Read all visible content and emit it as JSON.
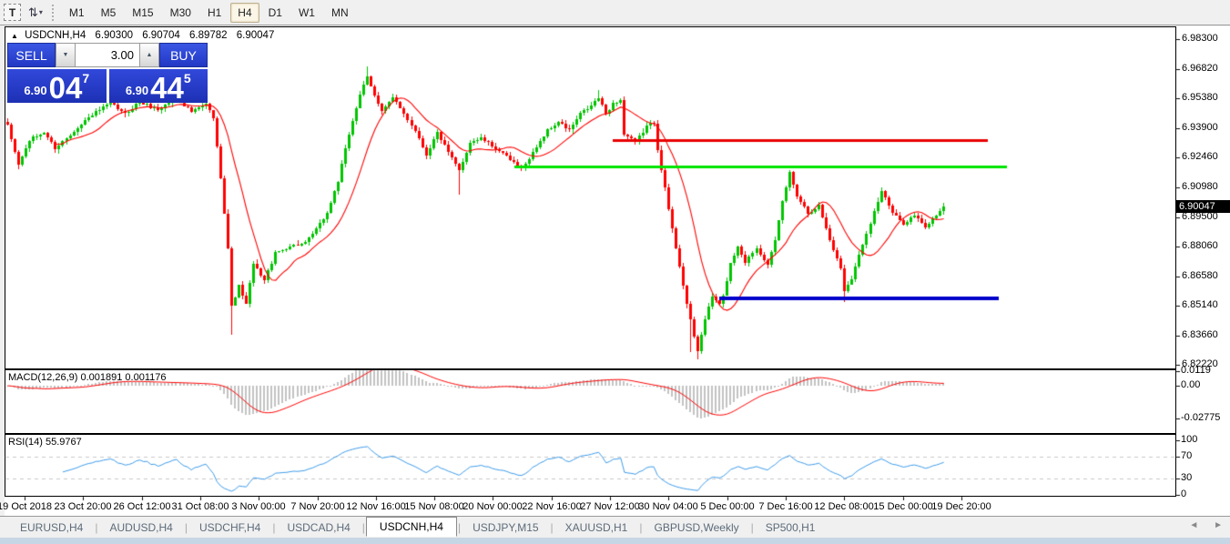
{
  "toolbar": {
    "text_tool": "T",
    "timeframes": [
      "M1",
      "M5",
      "M15",
      "M30",
      "H1",
      "H4",
      "D1",
      "W1",
      "MN"
    ],
    "active_timeframe": "H4"
  },
  "glyphs": {
    "collapse": "▲",
    "arrange": "⇅",
    "caret": "▾",
    "spin_down": "▼",
    "spin_up": "▲",
    "nav_left": "◄",
    "nav_right": "►"
  },
  "chart": {
    "title": {
      "symbol": "USDCNH,H4",
      "open": "6.90300",
      "high": "6.90704",
      "low": "6.89782",
      "close": "6.90047"
    },
    "trade_panel": {
      "sell_label": "SELL",
      "buy_label": "BUY",
      "volume": "3.00",
      "sell_price": {
        "prefix": "6.90",
        "big": "04",
        "sup": "7"
      },
      "buy_price": {
        "prefix": "6.90",
        "big": "44",
        "sup": "5"
      }
    },
    "price_axis": {
      "ticks": [
        "6.98300",
        "6.96820",
        "6.95380",
        "6.93900",
        "6.92460",
        "6.90980",
        "6.89500",
        "6.88060",
        "6.86580",
        "6.85140",
        "6.83660",
        "6.82220"
      ],
      "current": "6.90047"
    },
    "time_axis": [
      "19 Oct 2018",
      "23 Oct 20:00",
      "26 Oct 12:00",
      "31 Oct 08:00",
      "3 Nov 00:00",
      "7 Nov 20:00",
      "12 Nov 16:00",
      "15 Nov 08:00",
      "20 Nov 00:00",
      "22 Nov 16:00",
      "27 Nov 12:00",
      "30 Nov 04:00",
      "5 Dec 00:00",
      "7 Dec 16:00",
      "12 Dec 08:00",
      "15 Dec 00:00",
      "19 Dec 20:00"
    ],
    "macd": {
      "label": "MACD(12,26,9) 0.001891 0.001176",
      "axis": [
        "0.0119",
        "0.00",
        "-0.02775"
      ]
    },
    "rsi": {
      "label": "RSI(14) 55.9767",
      "axis": [
        "100",
        "70",
        "30",
        "0"
      ]
    }
  },
  "chart_data": {
    "type": "candlestick",
    "symbol": "USDCNH",
    "timeframe": "H4",
    "bars_visible": 256,
    "last_bar": {
      "open": 6.903,
      "high": 6.90704,
      "low": 6.89782,
      "close": 6.90047
    },
    "y_ticks": [
      6.983,
      6.9682,
      6.9538,
      6.939,
      6.9246,
      6.9098,
      6.895,
      6.8806,
      6.8658,
      6.8514,
      6.8366,
      6.8222
    ],
    "x_ticks": [
      "19 Oct 2018",
      "23 Oct 20:00",
      "26 Oct 12:00",
      "31 Oct 08:00",
      "3 Nov 00:00",
      "7 Nov 20:00",
      "12 Nov 16:00",
      "15 Nov 08:00",
      "20 Nov 00:00",
      "22 Nov 16:00",
      "27 Nov 12:00",
      "30 Nov 04:00",
      "5 Dec 00:00",
      "7 Dec 16:00",
      "12 Dec 08:00",
      "15 Dec 00:00",
      "19 Dec 20:00"
    ],
    "price_path": [
      [
        0,
        6.94
      ],
      [
        3,
        6.921
      ],
      [
        6,
        6.933
      ],
      [
        10,
        6.937
      ],
      [
        13,
        6.929
      ],
      [
        17,
        6.936
      ],
      [
        23,
        6.946
      ],
      [
        28,
        6.951
      ],
      [
        32,
        6.946
      ],
      [
        36,
        6.952
      ],
      [
        41,
        6.948
      ],
      [
        46,
        6.954
      ],
      [
        50,
        6.947
      ],
      [
        54,
        6.951
      ],
      [
        56,
        6.944
      ],
      [
        58,
        6.915
      ],
      [
        60,
        6.88
      ],
      [
        61,
        6.851
      ],
      [
        63,
        6.861
      ],
      [
        65,
        6.852
      ],
      [
        67,
        6.872
      ],
      [
        70,
        6.864
      ],
      [
        73,
        6.877
      ],
      [
        77,
        6.881
      ],
      [
        81,
        6.882
      ],
      [
        84,
        6.889
      ],
      [
        87,
        6.897
      ],
      [
        90,
        6.913
      ],
      [
        93,
        6.936
      ],
      [
        96,
        6.956
      ],
      [
        98,
        6.964
      ],
      [
        100,
        6.955
      ],
      [
        102,
        6.948
      ],
      [
        105,
        6.954
      ],
      [
        108,
        6.946
      ],
      [
        111,
        6.938
      ],
      [
        114,
        6.926
      ],
      [
        117,
        6.937
      ],
      [
        120,
        6.927
      ],
      [
        123,
        6.918
      ],
      [
        126,
        6.932
      ],
      [
        129,
        6.934
      ],
      [
        133,
        6.929
      ],
      [
        136,
        6.925
      ],
      [
        139,
        6.92
      ],
      [
        141,
        6.921
      ],
      [
        144,
        6.93
      ],
      [
        147,
        6.938
      ],
      [
        150,
        6.942
      ],
      [
        153,
        6.938
      ],
      [
        156,
        6.946
      ],
      [
        159,
        6.95
      ],
      [
        161,
        6.954
      ],
      [
        163,
        6.946
      ],
      [
        165,
        6.951
      ],
      [
        167,
        6.953
      ],
      [
        168,
        6.936
      ],
      [
        171,
        6.932
      ],
      [
        174,
        6.94
      ],
      [
        176,
        6.942
      ],
      [
        177,
        6.929
      ],
      [
        179,
        6.909
      ],
      [
        181,
        6.889
      ],
      [
        183,
        6.871
      ],
      [
        185,
        6.852
      ],
      [
        187,
        6.836
      ],
      [
        188,
        6.829
      ],
      [
        190,
        6.845
      ],
      [
        192,
        6.856
      ],
      [
        194,
        6.852
      ],
      [
        195,
        6.856
      ],
      [
        197,
        6.872
      ],
      [
        199,
        6.881
      ],
      [
        201,
        6.873
      ],
      [
        204,
        6.88
      ],
      [
        207,
        6.872
      ],
      [
        209,
        6.883
      ],
      [
        211,
        6.903
      ],
      [
        213,
        6.917
      ],
      [
        215,
        6.906
      ],
      [
        218,
        6.897
      ],
      [
        221,
        6.901
      ],
      [
        224,
        6.884
      ],
      [
        227,
        6.87
      ],
      [
        228,
        6.859
      ],
      [
        230,
        6.865
      ],
      [
        233,
        6.882
      ],
      [
        236,
        6.898
      ],
      [
        238,
        6.908
      ],
      [
        241,
        6.897
      ],
      [
        244,
        6.892
      ],
      [
        247,
        6.896
      ],
      [
        250,
        6.89
      ],
      [
        253,
        6.896
      ],
      [
        255,
        6.9005
      ]
    ],
    "long_wicks": [
      {
        "bar": 61,
        "low": 6.837
      },
      {
        "bar": 123,
        "low": 6.906
      },
      {
        "bar": 186,
        "low": 6.8285
      },
      {
        "bar": 188,
        "low": 6.825
      },
      {
        "bar": 228,
        "low": 6.853
      },
      {
        "bar": 98,
        "high": 6.9695
      },
      {
        "bar": 161,
        "high": 6.958
      }
    ],
    "ma": {
      "type": "sma",
      "period": 13,
      "color": "#ff0000"
    },
    "hlines": [
      {
        "color": "#e80000",
        "price": 6.933,
        "x1": 673,
        "x2": 1085,
        "w": 3
      },
      {
        "color": "#00e400",
        "price": 6.92,
        "x1": 565,
        "x2": 1106,
        "w": 3
      },
      {
        "color": "#0000cc",
        "price": 6.855,
        "x1": 790,
        "x2": 1097,
        "w": 4
      }
    ],
    "indicators": [
      {
        "type": "macd",
        "params": [
          12,
          26,
          9
        ],
        "current_values": [
          0.001891,
          0.001176
        ],
        "y_tick_values": [
          0.0119,
          0,
          -0.02775
        ]
      },
      {
        "type": "rsi",
        "params": [
          14
        ],
        "current_value": 55.9767,
        "levels": [
          70,
          30
        ],
        "y_tick_values": [
          100,
          70,
          30,
          0
        ]
      }
    ],
    "colors": {
      "up": "#00c400",
      "down": "#ff0000",
      "ma": "#ff0000",
      "macd_hist": "#c2c2c2",
      "macd_signal": "#ff0000",
      "rsi_line": "#3d9be9",
      "rsi_levels": "#c8c8c8",
      "axis_tick": "#000000"
    }
  },
  "tabs": {
    "items": [
      {
        "label": "EURUSD,H4",
        "active": false
      },
      {
        "label": "AUDUSD,H4",
        "active": false
      },
      {
        "label": "USDCHF,H4",
        "active": false
      },
      {
        "label": "USDCAD,H4",
        "active": false
      },
      {
        "label": "USDCNH,H4",
        "active": true
      },
      {
        "label": "USDJPY,M15",
        "active": false
      },
      {
        "label": "XAUUSD,H1",
        "active": false
      },
      {
        "label": "GBPUSD,Weekly",
        "active": false
      },
      {
        "label": "SP500,H1",
        "active": false
      }
    ]
  }
}
